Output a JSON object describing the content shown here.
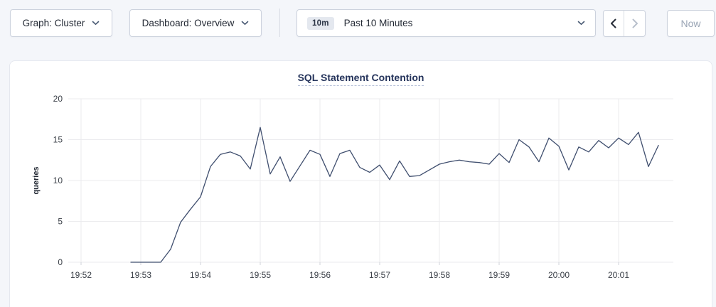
{
  "toolbar": {
    "graph_dropdown": {
      "label": "Graph: Cluster"
    },
    "dashboard_dropdown": {
      "label": "Dashboard: Overview"
    },
    "time_selector": {
      "badge": "10m",
      "label": "Past 10 Minutes"
    },
    "now_label": "Now"
  },
  "colors": {
    "line": "#3f4e6e",
    "grid": "#ebebee",
    "tick_text": "#3b4048",
    "title": "#26355c",
    "page_bg": "#f4f6fa"
  },
  "chart_data": {
    "type": "line",
    "title": "SQL Statement Contention",
    "xlabel": "",
    "ylabel": "queries",
    "ylim": [
      0,
      20
    ],
    "yticks": [
      0,
      5,
      10,
      15,
      20
    ],
    "xticks": [
      "19:52",
      "19:53",
      "19:54",
      "19:55",
      "19:56",
      "19:57",
      "19:58",
      "19:59",
      "20:00",
      "20:01"
    ],
    "grid": true,
    "legend_position": "none",
    "series": [
      {
        "name": "queries",
        "color": "#3f4e6e",
        "x": [
          "19:52:50",
          "19:53:00",
          "19:53:10",
          "19:53:20",
          "19:53:30",
          "19:53:40",
          "19:53:50",
          "19:54:00",
          "19:54:10",
          "19:54:20",
          "19:54:30",
          "19:54:40",
          "19:54:50",
          "19:55:00",
          "19:55:10",
          "19:55:20",
          "19:55:30",
          "19:55:40",
          "19:55:50",
          "19:56:00",
          "19:56:10",
          "19:56:20",
          "19:56:30",
          "19:56:40",
          "19:56:50",
          "19:57:00",
          "19:57:10",
          "19:57:20",
          "19:57:30",
          "19:57:40",
          "19:57:50",
          "19:58:00",
          "19:58:10",
          "19:58:20",
          "19:58:30",
          "19:58:40",
          "19:58:50",
          "19:59:00",
          "19:59:10",
          "19:59:20",
          "19:59:30",
          "19:59:40",
          "19:59:50",
          "20:00:00",
          "20:00:10",
          "20:00:20",
          "20:00:30",
          "20:00:40",
          "20:00:50",
          "20:01:00",
          "20:01:10",
          "20:01:20",
          "20:01:30",
          "20:01:40"
        ],
        "values": [
          0,
          0,
          0,
          0,
          1.6,
          4.9,
          6.5,
          8,
          11.7,
          13.2,
          13.5,
          13,
          11.4,
          16.5,
          10.8,
          12.9,
          9.9,
          11.8,
          13.7,
          13.2,
          10.5,
          13.3,
          13.7,
          11.6,
          11,
          11.9,
          10.1,
          12.4,
          10.5,
          10.6,
          11.3,
          12,
          12.3,
          12.5,
          12.3,
          12.2,
          12,
          13.3,
          12.2,
          15,
          14.1,
          12.3,
          15.2,
          14.2,
          11.3,
          14.1,
          13.5,
          14.9,
          14,
          15.2,
          14.4,
          15.9,
          11.7,
          14.3
        ]
      }
    ]
  }
}
